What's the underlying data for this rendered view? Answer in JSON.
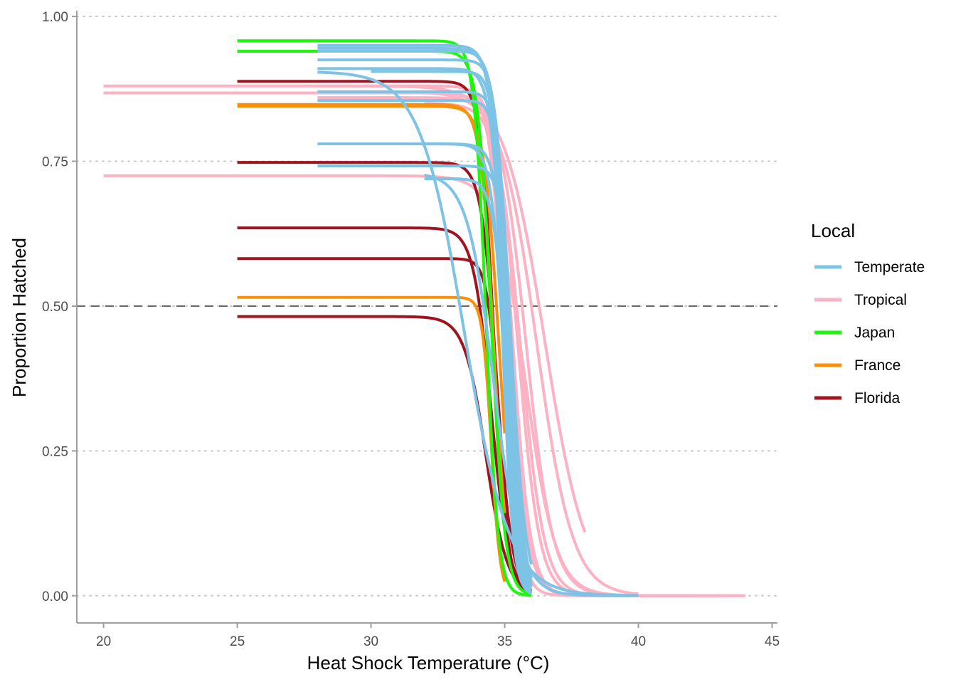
{
  "chart_data": {
    "type": "line",
    "title": "",
    "xlabel": "Heat Shock Temperature (°C)",
    "ylabel": "Proportion Hatched",
    "xlim": [
      19,
      45.2
    ],
    "ylim": [
      -0.047,
      1.01
    ],
    "x_ticks": [
      20,
      25,
      30,
      35,
      40,
      45
    ],
    "x_tick_labels": [
      "20",
      "25",
      "30",
      "35",
      "40",
      "45"
    ],
    "y_ticks": [
      0,
      0.25,
      0.5,
      0.75,
      1
    ],
    "y_tick_labels": [
      "0.00",
      "0.25",
      "0.50",
      "0.75",
      "1.00"
    ],
    "grid": "horizontal dotted major gridlines",
    "reference_line": {
      "y": 0.5,
      "style": "dashed"
    },
    "legend": {
      "title": "Local",
      "position": "right",
      "entries": [
        {
          "label": "Temperate",
          "color": "#7dc3e6"
        },
        {
          "label": "Tropical",
          "color": "#fcb2c4"
        },
        {
          "label": "Japan",
          "color": "#1cf70e"
        },
        {
          "label": "France",
          "color": "#f8900c"
        },
        {
          "label": "Florida",
          "color": "#9e1520"
        }
      ]
    },
    "series": [
      {
        "group": "Tropical",
        "curves": [
          {
            "x0": 20,
            "x1": 43,
            "top": 0.88,
            "t50": 35.0,
            "k": 3.5
          },
          {
            "x0": 20,
            "x1": 43,
            "top": 0.868,
            "t50": 35.2,
            "k": 3.0
          },
          {
            "x0": 20,
            "x1": 44,
            "top": 0.725,
            "t50": 35.8,
            "k": 1.8
          },
          {
            "x0": 28,
            "x1": 38,
            "top": 0.88,
            "t50": 36.5,
            "k": 1.3
          },
          {
            "x0": 28,
            "x1": 42,
            "top": 0.87,
            "t50": 35.8,
            "k": 2.0
          },
          {
            "x0": 28,
            "x1": 44,
            "top": 0.86,
            "t50": 35.5,
            "k": 2.5
          },
          {
            "x0": 30,
            "x1": 40,
            "top": 0.87,
            "t50": 36.2,
            "k": 1.5
          },
          {
            "x0": 30,
            "x1": 42,
            "top": 0.88,
            "t50": 35.3,
            "k": 3.0
          },
          {
            "x0": 32,
            "x1": 43,
            "top": 0.85,
            "t50": 35.6,
            "k": 2.3
          }
        ]
      },
      {
        "group": "Florida",
        "curves": [
          {
            "x0": 25,
            "x1": 36,
            "top": 0.888,
            "t50": 34.6,
            "k": 4.0
          },
          {
            "x0": 25,
            "x1": 36,
            "top": 0.748,
            "t50": 34.7,
            "k": 3.5
          },
          {
            "x0": 25,
            "x1": 36,
            "top": 0.635,
            "t50": 34.5,
            "k": 3.0
          },
          {
            "x0": 25,
            "x1": 35,
            "top": 0.582,
            "t50": 34.8,
            "k": 4.5
          },
          {
            "x0": 25,
            "x1": 36,
            "top": 0.482,
            "t50": 34.3,
            "k": 2.5
          }
        ]
      },
      {
        "group": "France",
        "curves": [
          {
            "x0": 25,
            "x1": 35,
            "top": 0.845,
            "t50": 34.8,
            "k": 3.5
          },
          {
            "x0": 25,
            "x1": 35,
            "top": 0.848,
            "t50": 34.6,
            "k": 4.0
          },
          {
            "x0": 25,
            "x1": 35,
            "top": 0.515,
            "t50": 34.5,
            "k": 6.0
          }
        ]
      },
      {
        "group": "Japan",
        "curves": [
          {
            "x0": 25,
            "x1": 36,
            "top": 0.958,
            "t50": 34.3,
            "k": 4.5
          },
          {
            "x0": 25,
            "x1": 36,
            "top": 0.94,
            "t50": 34.5,
            "k": 4.0
          }
        ]
      },
      {
        "group": "Temperate",
        "curves": [
          {
            "x0": 28,
            "x1": 36,
            "top": 0.95,
            "t50": 35.0,
            "k": 4.0
          },
          {
            "x0": 28,
            "x1": 36,
            "top": 0.945,
            "t50": 35.2,
            "k": 3.5
          },
          {
            "x0": 28,
            "x1": 36,
            "top": 0.94,
            "t50": 34.9,
            "k": 5.0
          },
          {
            "x0": 28,
            "x1": 36,
            "top": 0.925,
            "t50": 35.1,
            "k": 4.5
          },
          {
            "x0": 28,
            "x1": 36,
            "top": 0.91,
            "t50": 35.0,
            "k": 4.0
          },
          {
            "x0": 28,
            "x1": 40,
            "top": 0.905,
            "t50": 33.5,
            "k": 1.2
          },
          {
            "x0": 28,
            "x1": 36,
            "top": 0.87,
            "t50": 35.2,
            "k": 4.5
          },
          {
            "x0": 28,
            "x1": 36,
            "top": 0.855,
            "t50": 35.1,
            "k": 5.0
          },
          {
            "x0": 28,
            "x1": 36,
            "top": 0.78,
            "t50": 35.0,
            "k": 4.0
          },
          {
            "x0": 28,
            "x1": 36,
            "top": 0.742,
            "t50": 35.3,
            "k": 4.5
          },
          {
            "x0": 30,
            "x1": 36,
            "top": 0.905,
            "t50": 35.0,
            "k": 5.0
          },
          {
            "x0": 32,
            "x1": 36,
            "top": 0.78,
            "t50": 35.2,
            "k": 4.0
          },
          {
            "x0": 32,
            "x1": 36,
            "top": 0.72,
            "t50": 35.1,
            "k": 4.0
          },
          {
            "x0": 32,
            "x1": 40,
            "top": 0.73,
            "t50": 34.6,
            "k": 2.0
          }
        ]
      }
    ]
  }
}
